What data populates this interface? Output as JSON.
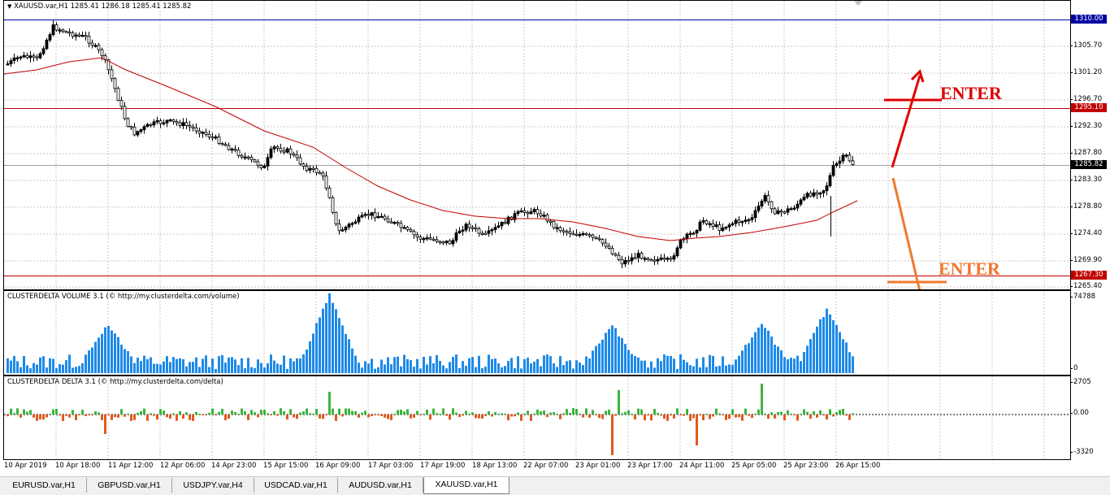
{
  "main_pane": {
    "title": "XAUUSD.var,H1  1285.41 1286.18 1285.41 1285.82",
    "price_ticks": [
      "1305.70",
      "1301.20",
      "1296.70",
      "1292.30",
      "1287.80",
      "1283.30",
      "1278.80",
      "1274.40",
      "1269.90",
      "1265.40"
    ],
    "level_labels": {
      "top": "1310.00",
      "mid": "1295.10",
      "current": "1285.82",
      "low": "1267.30"
    },
    "colors": {
      "up_candle": "#000000",
      "ma": "#c00000",
      "level_top": "#0000a0",
      "level_red": "#c00000",
      "current": "#404040"
    }
  },
  "annotations": {
    "enter_upper": "ENTER",
    "enter_lower": "ENTER",
    "colors": {
      "upper": "#e00000",
      "lower": "#f07830"
    }
  },
  "volume_pane": {
    "title": "CLUSTERDELTA VOLUME 3.1 (© http://my.clusterdelta.com/volume)",
    "max_label": "74788",
    "zero_label": "0",
    "bar_color": "#1e8ae8"
  },
  "delta_pane": {
    "title": "CLUSTERDELTA DELTA 3.1 (© http://my.clusterdelta.com/delta)",
    "ticks": [
      "2705",
      "0.00",
      "-3320"
    ],
    "pos_color": "#3cb43c",
    "neg_color": "#e05a1e"
  },
  "time_axis": [
    "10 Apr 2019",
    "10 Apr 18:00",
    "11 Apr 12:00",
    "12 Apr 06:00",
    "14 Apr 23:00",
    "15 Apr 15:00",
    "16 Apr 09:00",
    "17 Apr 03:00",
    "17 Apr 19:00",
    "18 Apr 13:00",
    "22 Apr 07:00",
    "23 Apr 01:00",
    "23 Apr 17:00",
    "24 Apr 11:00",
    "25 Apr 05:00",
    "25 Apr 23:00",
    "26 Apr 15:00"
  ],
  "tabs": [
    "EURUSD.var,H1",
    "GBPUSD.var,H1",
    "USDJPY.var,H4",
    "USDCAD.var,H1",
    "AUDUSD.var,H1",
    "XAUUSD.var,H1"
  ],
  "active_tab": "XAUUSD.var,H1"
}
